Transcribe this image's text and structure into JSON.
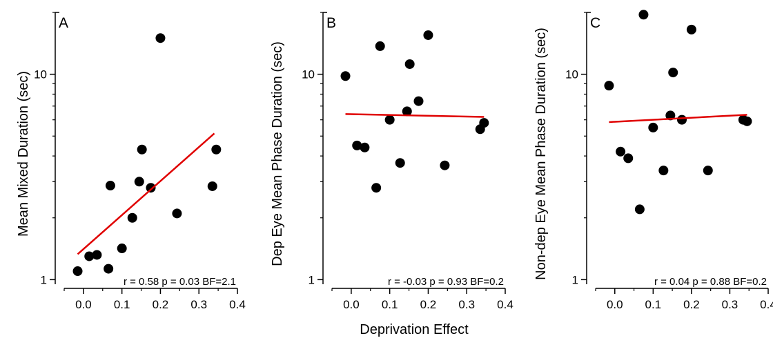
{
  "figure": {
    "shared_xlabel": "Deprivation Effect"
  },
  "chart_data": [
    {
      "type": "scatter",
      "panel_label": "A",
      "ylabel": "Mean Mixed Duration (sec)",
      "xlabel": "",
      "xlim": [
        -0.05,
        0.4
      ],
      "ylim": [
        0.95,
        20
      ],
      "y_scale": "log",
      "x_ticks": [
        "0.0",
        "0.1",
        "0.2",
        "0.3",
        "0.4"
      ],
      "y_ticks": [
        "1",
        "10"
      ],
      "point_color": "#000000",
      "fit_color": "#e00000",
      "stats": "r = 0.58 p = 0.03 BF=2.1",
      "points": [
        {
          "x": -0.015,
          "y": 1.1
        },
        {
          "x": 0.015,
          "y": 1.3
        },
        {
          "x": 0.035,
          "y": 1.32
        },
        {
          "x": 0.065,
          "y": 1.13
        },
        {
          "x": 0.07,
          "y": 2.87
        },
        {
          "x": 0.1,
          "y": 1.42
        },
        {
          "x": 0.127,
          "y": 2.0
        },
        {
          "x": 0.145,
          "y": 3.0
        },
        {
          "x": 0.152,
          "y": 4.3
        },
        {
          "x": 0.175,
          "y": 2.8
        },
        {
          "x": 0.2,
          "y": 15.0
        },
        {
          "x": 0.243,
          "y": 2.1
        },
        {
          "x": 0.335,
          "y": 2.85
        },
        {
          "x": 0.345,
          "y": 4.3
        }
      ],
      "fit": [
        {
          "x": -0.015,
          "y": 1.33
        },
        {
          "x": 0.34,
          "y": 5.15
        }
      ]
    },
    {
      "type": "scatter",
      "panel_label": "B",
      "ylabel": "Dep Eye Mean Phase Duration (sec)",
      "xlabel": "",
      "xlim": [
        -0.05,
        0.4
      ],
      "ylim": [
        0.95,
        20
      ],
      "y_scale": "log",
      "x_ticks": [
        "0.0",
        "0.1",
        "0.2",
        "0.3",
        "0.4"
      ],
      "y_ticks": [
        "1",
        "10"
      ],
      "point_color": "#000000",
      "fit_color": "#e00000",
      "stats": "r = -0.03 p = 0.93 BF=0.2",
      "points": [
        {
          "x": -0.015,
          "y": 9.8
        },
        {
          "x": 0.015,
          "y": 4.5
        },
        {
          "x": 0.035,
          "y": 4.4
        },
        {
          "x": 0.065,
          "y": 2.8
        },
        {
          "x": 0.075,
          "y": 13.7
        },
        {
          "x": 0.1,
          "y": 6.0
        },
        {
          "x": 0.127,
          "y": 3.7
        },
        {
          "x": 0.145,
          "y": 6.6
        },
        {
          "x": 0.152,
          "y": 11.2
        },
        {
          "x": 0.175,
          "y": 7.4
        },
        {
          "x": 0.2,
          "y": 15.5
        },
        {
          "x": 0.243,
          "y": 3.6
        },
        {
          "x": 0.335,
          "y": 5.4
        },
        {
          "x": 0.345,
          "y": 5.8
        }
      ],
      "fit": [
        {
          "x": -0.015,
          "y": 6.4
        },
        {
          "x": 0.345,
          "y": 6.2
        }
      ]
    },
    {
      "type": "scatter",
      "panel_label": "C",
      "ylabel": "Non-dep Eye Mean Phase Duration (sec)",
      "xlabel": "",
      "xlim": [
        -0.05,
        0.4
      ],
      "ylim": [
        0.95,
        20
      ],
      "y_scale": "log",
      "x_ticks": [
        "0.0",
        "0.1",
        "0.2",
        "0.3",
        "0.4"
      ],
      "y_ticks": [
        "1",
        "10"
      ],
      "point_color": "#000000",
      "fit_color": "#e00000",
      "stats": "r = 0.04 p = 0.88 BF=0.2",
      "points": [
        {
          "x": -0.015,
          "y": 8.8
        },
        {
          "x": 0.015,
          "y": 4.2
        },
        {
          "x": 0.035,
          "y": 3.9
        },
        {
          "x": 0.065,
          "y": 2.2
        },
        {
          "x": 0.075,
          "y": 19.5
        },
        {
          "x": 0.1,
          "y": 5.5
        },
        {
          "x": 0.127,
          "y": 3.4
        },
        {
          "x": 0.145,
          "y": 6.3
        },
        {
          "x": 0.152,
          "y": 10.2
        },
        {
          "x": 0.175,
          "y": 6.0
        },
        {
          "x": 0.2,
          "y": 16.5
        },
        {
          "x": 0.243,
          "y": 3.4
        },
        {
          "x": 0.335,
          "y": 6.0
        },
        {
          "x": 0.345,
          "y": 5.9
        }
      ],
      "fit": [
        {
          "x": -0.015,
          "y": 5.85
        },
        {
          "x": 0.345,
          "y": 6.35
        }
      ]
    }
  ]
}
